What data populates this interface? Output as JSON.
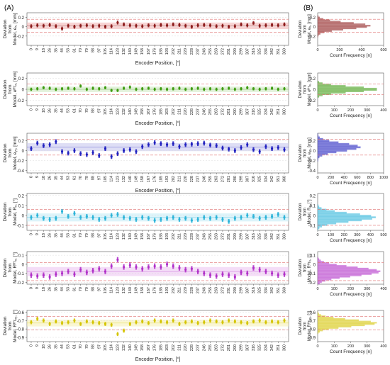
{
  "figure": {
    "panel_a": "(A)",
    "panel_b": "(B)"
  },
  "chart_data": [
    {
      "id": "ex",
      "type": "scatter",
      "color": "#8B1A1A",
      "band": "#f2b8b8",
      "ylabel": [
        "Deviation",
        "from",
        "Model, eₓ, [mm]"
      ],
      "ylim": [
        -0.4,
        0.3
      ],
      "yticks": [
        -0.2,
        0,
        0.2
      ],
      "xlabel": "Encoder Position, [°]",
      "xticks": [
        "0",
        "9",
        "18",
        "26",
        "35",
        "44",
        "53",
        "61",
        "70",
        "79",
        "88",
        "97",
        "105",
        "114",
        "123",
        "132",
        "140",
        "149",
        "158",
        "167",
        "176",
        "185",
        "193",
        "202",
        "211",
        "220",
        "228",
        "237",
        "246",
        "255",
        "263",
        "272",
        "281",
        "290",
        "299",
        "307",
        "316",
        "325",
        "334",
        "342",
        "351",
        "360"
      ],
      "means": [
        0.01,
        0.03,
        0.02,
        0.04,
        0.01,
        -0.04,
        0.02,
        0.0,
        0.02,
        0.03,
        0.01,
        0.02,
        0.0,
        0.01,
        0.09,
        0.05,
        0.03,
        0.02,
        0.01,
        0.03,
        0.02,
        0.04,
        0.03,
        0.05,
        0.04,
        0.02,
        0.0,
        0.03,
        0.04,
        0.03,
        0.01,
        0.02,
        0.0,
        0.01,
        0.05,
        0.03,
        0.08,
        0.02,
        0.03,
        0.04,
        0.03,
        0.05
      ],
      "hist": {
        "xlabel": "Count Frequency [n]",
        "xlim": [
          0,
          600
        ],
        "xticks": [
          0,
          200,
          400,
          600
        ],
        "mean": 0.02,
        "sd": 0.07,
        "peak": 480
      }
    },
    {
      "id": "ethz",
      "type": "scatter",
      "color": "#3d9b0f",
      "band": "#cfe8c0",
      "ylabel": [
        "Deviation",
        "from",
        "Model, eᴴᴛₓ, [mm]"
      ],
      "ylim": [
        -0.3,
        0.3
      ],
      "yticks": [
        -0.2,
        0,
        0.2
      ],
      "xlabel": "Encoder Position, [°]",
      "xticks": [
        "0",
        "9",
        "18",
        "26",
        "35",
        "44",
        "53",
        "61",
        "70",
        "79",
        "88",
        "97",
        "105",
        "114",
        "123",
        "132",
        "140",
        "149",
        "158",
        "167",
        "176",
        "185",
        "193",
        "202",
        "211",
        "220",
        "228",
        "237",
        "246",
        "255",
        "263",
        "272",
        "281",
        "290",
        "299",
        "307",
        "316",
        "325",
        "334",
        "342",
        "351",
        "360"
      ],
      "means": [
        0.0,
        0.01,
        0.03,
        0.02,
        0.0,
        0.01,
        0.02,
        0.01,
        0.06,
        0.0,
        0.02,
        0.01,
        0.03,
        -0.02,
        -0.02,
        0.02,
        0.04,
        0.0,
        0.01,
        0.02,
        0.0,
        0.01,
        0.0,
        0.01,
        0.02,
        0.0,
        0.01,
        0.02,
        0.0,
        0.01,
        0.0,
        0.01,
        0.02,
        0.0,
        0.01,
        0.03,
        0.01,
        0.0,
        0.01,
        0.02,
        0.0,
        0.01
      ],
      "hist": {
        "xlabel": "Count Frequency [n]",
        "xlim": [
          0,
          400
        ],
        "xticks": [
          0,
          100,
          200,
          300,
          400
        ],
        "mean": 0.0,
        "sd": 0.05,
        "peak": 370
      }
    },
    {
      "id": "eyy",
      "type": "scatter",
      "color": "#1f1fbf",
      "band": "#c8c8ef",
      "ylabel": [
        "Deviation",
        "from",
        "Model, eᵧᵧ, [mm]"
      ],
      "ylim": [
        -0.45,
        0.35
      ],
      "yticks": [
        -0.4,
        -0.2,
        0,
        0.2
      ],
      "xlabel": "Encoder Position, [°]",
      "xticks": [
        "0",
        "9",
        "18",
        "26",
        "35",
        "44",
        "53",
        "61",
        "70",
        "79",
        "88",
        "97",
        "105",
        "114",
        "123",
        "132",
        "140",
        "149",
        "158",
        "167",
        "176",
        "185",
        "193",
        "202",
        "211",
        "220",
        "228",
        "237",
        "246",
        "255",
        "263",
        "272",
        "281",
        "290",
        "299",
        "307",
        "316",
        "325",
        "334",
        "342",
        "351",
        "360"
      ],
      "means": [
        0.04,
        0.15,
        0.1,
        0.12,
        0.18,
        -0.02,
        -0.05,
        0.0,
        -0.06,
        -0.08,
        -0.04,
        -0.1,
        0.04,
        -0.12,
        -0.06,
        0.0,
        0.02,
        -0.02,
        0.08,
        0.12,
        0.16,
        0.14,
        0.12,
        0.14,
        0.08,
        0.12,
        0.13,
        0.14,
        0.15,
        0.11,
        0.1,
        0.05,
        0.03,
        0.0,
        0.06,
        0.12,
        0.02,
        -0.02,
        0.08,
        0.04,
        0.06,
        0.02
      ],
      "hist": {
        "xlabel": "Count Frequency [n]",
        "xlim": [
          0,
          1000
        ],
        "xticks": [
          0,
          200,
          400,
          600,
          800,
          1000
        ],
        "mean": 0.07,
        "sd": 0.08,
        "peak": 650
      }
    },
    {
      "id": "rx",
      "type": "scatter",
      "color": "#2bb3d9",
      "band": "#c6ecf6",
      "ylabel": [
        "Deviation",
        "from",
        "Model, Rₓ, [°]"
      ],
      "ylim": [
        -0.15,
        0.22
      ],
      "yticks": [
        -0.1,
        0,
        0.1,
        0.2
      ],
      "xlabel": "",
      "xticks": [
        "0",
        "9",
        "18",
        "26",
        "35",
        "44",
        "53",
        "61",
        "70",
        "79",
        "88",
        "97",
        "105",
        "114",
        "123",
        "132",
        "140",
        "149",
        "158",
        "167",
        "176",
        "185",
        "193",
        "202",
        "211",
        "220",
        "228",
        "237",
        "246",
        "255",
        "263",
        "272",
        "281",
        "290",
        "299",
        "307",
        "316",
        "325",
        "334",
        "342",
        "351",
        "360"
      ],
      "means": [
        -0.02,
        0.0,
        -0.03,
        -0.04,
        -0.03,
        0.04,
        -0.01,
        0.02,
        -0.02,
        -0.01,
        -0.02,
        -0.04,
        -0.03,
        0.0,
        0.01,
        -0.02,
        -0.03,
        -0.04,
        -0.02,
        -0.03,
        -0.05,
        -0.04,
        -0.03,
        -0.02,
        -0.04,
        -0.03,
        -0.05,
        -0.04,
        -0.02,
        -0.03,
        -0.02,
        -0.04,
        -0.06,
        -0.03,
        -0.02,
        0.0,
        -0.01,
        -0.03,
        -0.02,
        -0.01,
        0.01,
        -0.02
      ],
      "hist": {
        "xlabel": "Count Frequency [n]",
        "xlim": [
          0,
          500
        ],
        "xticks": [
          0,
          100,
          200,
          300,
          400,
          500
        ],
        "mean": -0.02,
        "sd": 0.04,
        "peak": 440
      }
    },
    {
      "id": "rthz",
      "type": "scatter",
      "color": "#b02fc8",
      "band": "#ecc7f2",
      "ylabel": [
        "Deviation",
        "from",
        "Model, Rᴴᴛₓ, [°]"
      ],
      "ylim": [
        -0.22,
        0.14
      ],
      "yticks": [
        -0.2,
        -0.1,
        0,
        0.1
      ],
      "xlabel": "",
      "xticks": [
        "0",
        "9",
        "18",
        "26",
        "35",
        "44",
        "53",
        "61",
        "70",
        "79",
        "88",
        "97",
        "105",
        "114",
        "123",
        "132",
        "140",
        "149",
        "158",
        "167",
        "176",
        "185",
        "193",
        "202",
        "211",
        "220",
        "228",
        "237",
        "246",
        "255",
        "263",
        "272",
        "281",
        "290",
        "299",
        "307",
        "316",
        "325",
        "334",
        "342",
        "351",
        "360"
      ],
      "means": [
        -0.12,
        -0.13,
        -0.12,
        -0.14,
        -0.11,
        -0.1,
        -0.08,
        -0.11,
        -0.06,
        -0.09,
        -0.07,
        -0.05,
        -0.08,
        -0.02,
        0.05,
        -0.03,
        -0.01,
        -0.03,
        -0.05,
        -0.03,
        -0.02,
        -0.03,
        0.0,
        -0.02,
        -0.04,
        -0.06,
        -0.05,
        -0.08,
        -0.1,
        -0.12,
        -0.13,
        -0.11,
        -0.12,
        -0.14,
        -0.09,
        -0.1,
        -0.04,
        -0.06,
        -0.08,
        -0.1,
        -0.12,
        -0.11
      ],
      "hist": {
        "xlabel": "Count Frequency [n]",
        "xlim": [
          0,
          400
        ],
        "xticks": [
          0,
          100,
          200,
          300,
          400
        ],
        "mean": -0.08,
        "sd": 0.05,
        "peak": 380
      }
    },
    {
      "id": "rthz2",
      "type": "scatter",
      "color": "#d4c400",
      "band": "#f6f0b8",
      "ylabel": [
        "Deviation",
        "from",
        "Model, Rᴴᴛₓᵧ, [°]"
      ],
      "ylim": [
        -0.95,
        -0.58
      ],
      "yticks": [
        -0.9,
        -0.8,
        -0.7,
        -0.6
      ],
      "xlabel": "Encoder Position, [°]",
      "xticks": [
        "0",
        "9",
        "18",
        "26",
        "35",
        "44",
        "53",
        "61",
        "70",
        "79",
        "88",
        "97",
        "105",
        "114",
        "123",
        "132",
        "140",
        "149",
        "158",
        "167",
        "176",
        "185",
        "193",
        "202",
        "211",
        "220",
        "228",
        "237",
        "246",
        "255",
        "263",
        "272",
        "281",
        "290",
        "299",
        "307",
        "316",
        "325",
        "334",
        "342",
        "351",
        "360"
      ],
      "means": [
        -0.72,
        -0.68,
        -0.7,
        -0.74,
        -0.71,
        -0.73,
        -0.72,
        -0.7,
        -0.74,
        -0.71,
        -0.72,
        -0.73,
        -0.74,
        -0.75,
        -0.86,
        -0.82,
        -0.74,
        -0.72,
        -0.71,
        -0.73,
        -0.7,
        -0.71,
        -0.72,
        -0.7,
        -0.74,
        -0.72,
        -0.71,
        -0.73,
        -0.72,
        -0.7,
        -0.71,
        -0.72,
        -0.7,
        -0.71,
        -0.72,
        -0.73,
        -0.71,
        -0.7,
        -0.72,
        -0.71,
        -0.72,
        -0.7
      ],
      "hist": {
        "xlabel": "Count Frequency [n]",
        "xlim": [
          0,
          400
        ],
        "xticks": [
          0,
          100,
          200,
          300,
          400
        ],
        "mean": -0.73,
        "sd": 0.04,
        "peak": 360
      }
    }
  ]
}
